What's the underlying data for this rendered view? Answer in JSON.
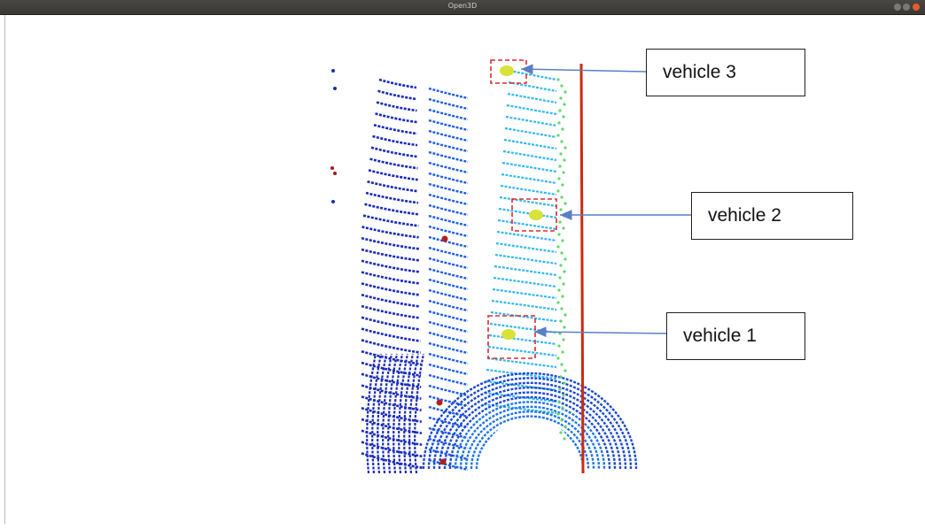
{
  "window": {
    "title": "Open3D",
    "accent_close": "#e35b2e"
  },
  "annotations": [
    {
      "label": "vehicle 3"
    },
    {
      "label": "vehicle 2"
    },
    {
      "label": "vehicle 1"
    }
  ],
  "colors": {
    "arrow": "#5b7fc4",
    "highlight_box": "#e0282e",
    "near_points": "#1a2bb8",
    "mid_points": "#1e7fe8",
    "far_points": "#33b8f0",
    "object_points": "#d8e23a",
    "wall_points": "#cc2a10"
  }
}
